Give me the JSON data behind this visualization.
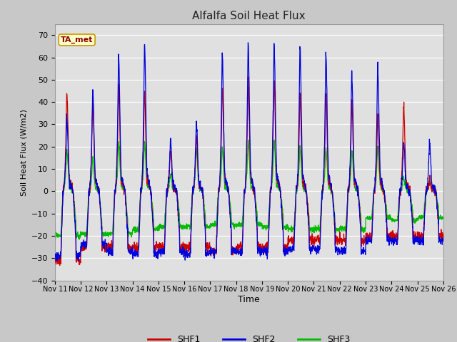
{
  "title": "Alfalfa Soil Heat Flux",
  "xlabel": "Time",
  "ylabel": "Soil Heat Flux (W/m2)",
  "ylim": [
    -40,
    75
  ],
  "yticks": [
    -40,
    -30,
    -20,
    -10,
    0,
    10,
    20,
    30,
    40,
    50,
    60,
    70
  ],
  "colors": {
    "SHF1": "#cc0000",
    "SHF2": "#0000dd",
    "SHF3": "#00bb00"
  },
  "bg_color": "#e8e8e8",
  "annotation_text": "TA_met",
  "annotation_bg": "#ffffcc",
  "annotation_border": "#cc9900",
  "shf1_peaks": [
    45,
    41,
    48,
    45,
    19,
    25,
    46,
    50,
    50,
    44,
    44,
    40,
    34,
    39,
    5
  ],
  "shf2_peaks": [
    33,
    46,
    60,
    67,
    24,
    32,
    62,
    67,
    67,
    66,
    62,
    53,
    57,
    22,
    22
  ],
  "shf3_peaks": [
    19,
    15,
    22,
    22,
    8,
    20,
    20,
    23,
    23,
    20,
    19,
    18,
    20,
    6,
    5
  ],
  "shf1_night": [
    -31,
    -25,
    -25,
    -25,
    -25,
    -25,
    -27,
    -25,
    -25,
    -22,
    -22,
    -22,
    -20,
    -20,
    -20
  ],
  "shf2_night": [
    -29,
    -24,
    -27,
    -28,
    -27,
    -28,
    -27,
    -27,
    -27,
    -26,
    -26,
    -27,
    -22,
    -22,
    -22
  ],
  "shf3_night": [
    -20,
    -19,
    -19,
    -17,
    -16,
    -16,
    -15,
    -15,
    -16,
    -17,
    -17,
    -17,
    -12,
    -13,
    -12
  ]
}
